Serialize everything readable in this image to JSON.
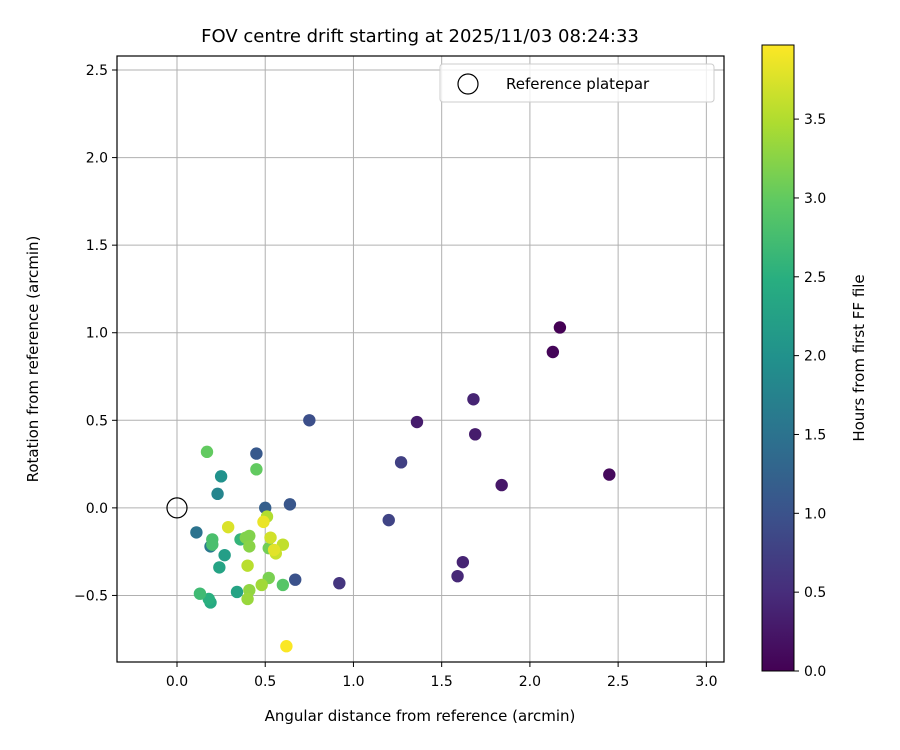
{
  "chart_data": {
    "type": "scatter",
    "title": "FOV centre drift starting at 2025/11/03 08:24:33",
    "xlabel": "Angular distance from reference (arcmin)",
    "ylabel": "Rotation from reference (arcmin)",
    "xlim": [
      -0.34,
      3.1
    ],
    "ylim": [
      -0.88,
      2.58
    ],
    "xticks": [
      0.0,
      0.5,
      1.0,
      1.5,
      2.0,
      2.5,
      3.0
    ],
    "xtick_labels": [
      "0.0",
      "0.5",
      "1.0",
      "1.5",
      "2.0",
      "2.5",
      "3.0"
    ],
    "yticks": [
      -0.5,
      0.0,
      0.5,
      1.0,
      1.5,
      2.0,
      2.5
    ],
    "ytick_labels": [
      "−0.5",
      "0.0",
      "0.5",
      "1.0",
      "1.5",
      "2.0",
      "2.5"
    ],
    "grid": true,
    "legend": {
      "position": "top-right",
      "label": "Reference platepar"
    },
    "reference": {
      "x": 0.0,
      "y": 0.0
    },
    "colorbar": {
      "label": "Hours from first FF file",
      "range": [
        0.0,
        3.97
      ],
      "ticks": [
        0.0,
        0.5,
        1.0,
        1.5,
        2.0,
        2.5,
        3.0,
        3.5
      ],
      "tick_labels": [
        "0.0",
        "0.5",
        "1.0",
        "1.5",
        "2.0",
        "2.5",
        "3.0",
        "3.5"
      ],
      "colormap": "viridis"
    },
    "points": [
      {
        "x": 2.17,
        "y": 1.03,
        "h": 0.0
      },
      {
        "x": 2.13,
        "y": 0.89,
        "h": 0.05
      },
      {
        "x": 2.45,
        "y": 0.19,
        "h": 0.1
      },
      {
        "x": 1.84,
        "y": 0.13,
        "h": 0.25
      },
      {
        "x": 1.36,
        "y": 0.49,
        "h": 0.3
      },
      {
        "x": 1.69,
        "y": 0.42,
        "h": 0.3
      },
      {
        "x": 1.68,
        "y": 0.62,
        "h": 0.4
      },
      {
        "x": 1.62,
        "y": -0.31,
        "h": 0.4
      },
      {
        "x": 1.59,
        "y": -0.39,
        "h": 0.45
      },
      {
        "x": 0.92,
        "y": -0.43,
        "h": 0.6
      },
      {
        "x": 1.27,
        "y": 0.26,
        "h": 0.75
      },
      {
        "x": 1.2,
        "y": -0.07,
        "h": 0.8
      },
      {
        "x": 0.75,
        "y": 0.5,
        "h": 0.95
      },
      {
        "x": 0.67,
        "y": -0.41,
        "h": 1.0
      },
      {
        "x": 0.64,
        "y": 0.02,
        "h": 1.05
      },
      {
        "x": 0.45,
        "y": 0.31,
        "h": 1.1
      },
      {
        "x": 0.5,
        "y": 0.0,
        "h": 1.2
      },
      {
        "x": 0.11,
        "y": -0.14,
        "h": 1.5
      },
      {
        "x": 0.19,
        "y": -0.22,
        "h": 1.6
      },
      {
        "x": 0.23,
        "y": 0.08,
        "h": 1.8
      },
      {
        "x": 0.25,
        "y": 0.18,
        "h": 2.0
      },
      {
        "x": 0.27,
        "y": -0.27,
        "h": 2.2
      },
      {
        "x": 0.24,
        "y": -0.34,
        "h": 2.3
      },
      {
        "x": 0.34,
        "y": -0.48,
        "h": 2.3
      },
      {
        "x": 0.19,
        "y": -0.54,
        "h": 2.4
      },
      {
        "x": 0.18,
        "y": -0.52,
        "h": 2.5
      },
      {
        "x": 0.36,
        "y": -0.18,
        "h": 2.6
      },
      {
        "x": 0.13,
        "y": -0.49,
        "h": 2.7
      },
      {
        "x": 0.2,
        "y": -0.18,
        "h": 2.8
      },
      {
        "x": 0.2,
        "y": -0.21,
        "h": 2.8
      },
      {
        "x": 0.6,
        "y": -0.44,
        "h": 2.9
      },
      {
        "x": 0.45,
        "y": 0.22,
        "h": 3.0
      },
      {
        "x": 0.17,
        "y": 0.32,
        "h": 3.0
      },
      {
        "x": 0.52,
        "y": -0.23,
        "h": 3.1
      },
      {
        "x": 0.52,
        "y": -0.4,
        "h": 3.15
      },
      {
        "x": 0.41,
        "y": -0.16,
        "h": 3.2
      },
      {
        "x": 0.39,
        "y": -0.17,
        "h": 3.2
      },
      {
        "x": 0.41,
        "y": -0.22,
        "h": 3.25
      },
      {
        "x": 0.41,
        "y": -0.47,
        "h": 3.3
      },
      {
        "x": 0.4,
        "y": -0.52,
        "h": 3.35
      },
      {
        "x": 0.48,
        "y": -0.44,
        "h": 3.4
      },
      {
        "x": 0.51,
        "y": -0.05,
        "h": 3.5
      },
      {
        "x": 0.4,
        "y": -0.33,
        "h": 3.55
      },
      {
        "x": 0.6,
        "y": -0.21,
        "h": 3.6
      },
      {
        "x": 0.56,
        "y": -0.26,
        "h": 3.65
      },
      {
        "x": 0.53,
        "y": -0.17,
        "h": 3.7
      },
      {
        "x": 0.29,
        "y": -0.11,
        "h": 3.75
      },
      {
        "x": 0.55,
        "y": -0.24,
        "h": 3.8
      },
      {
        "x": 0.49,
        "y": -0.08,
        "h": 3.85
      },
      {
        "x": 0.62,
        "y": -0.79,
        "h": 3.95
      }
    ]
  }
}
